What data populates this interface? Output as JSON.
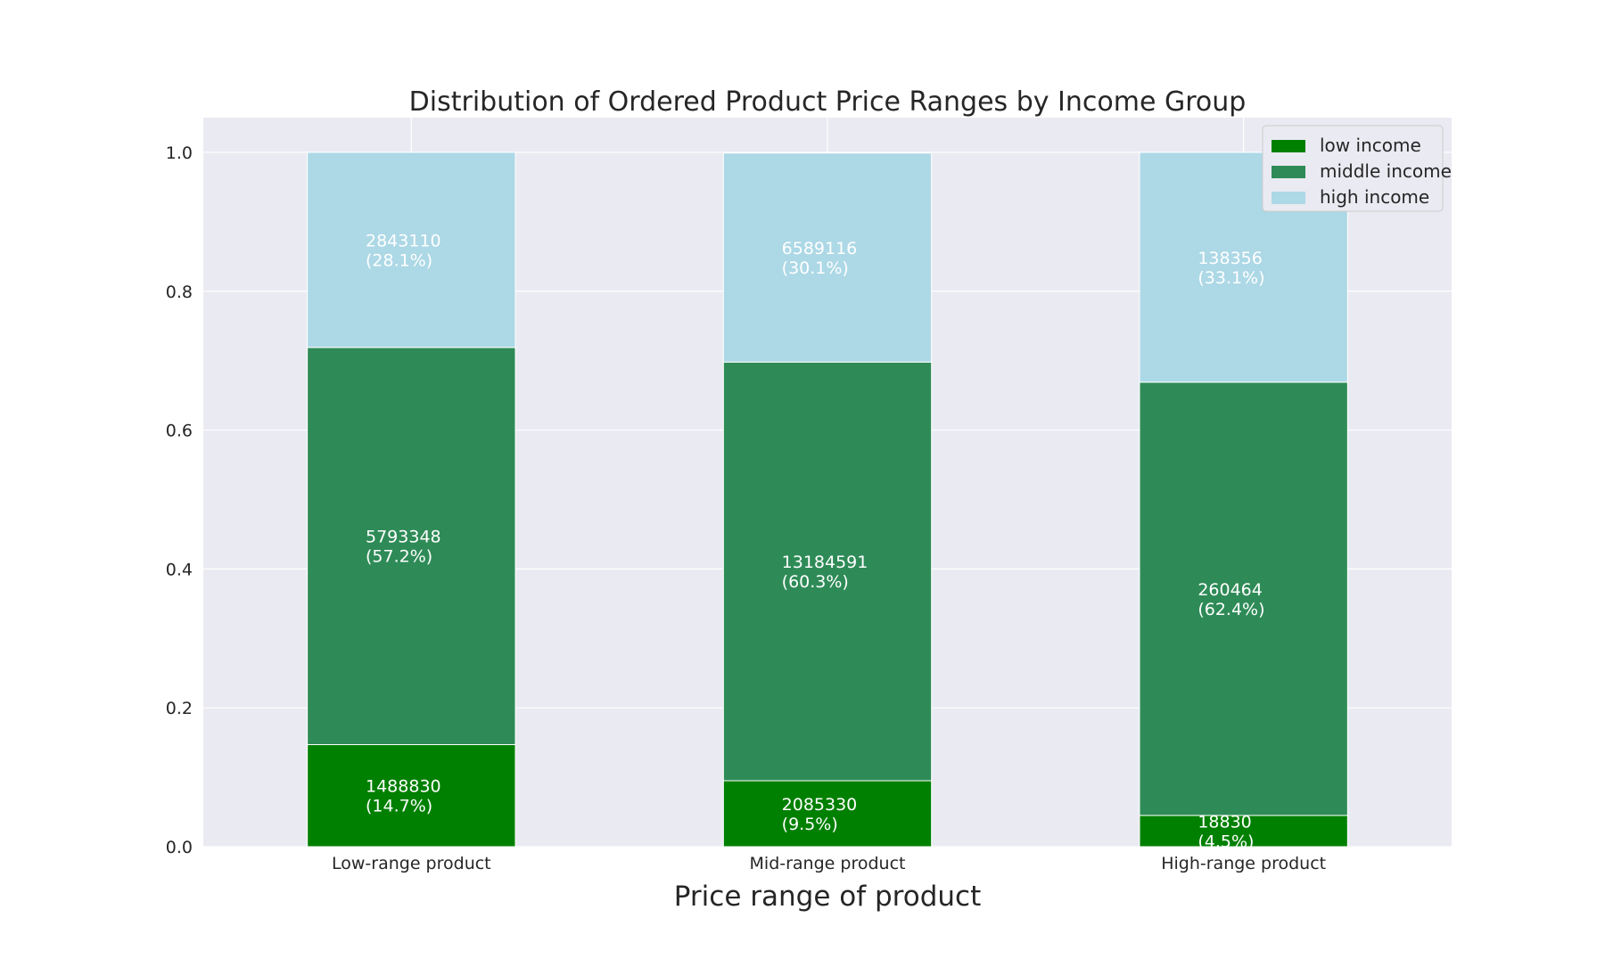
{
  "chart_data": {
    "type": "bar",
    "stacked": true,
    "normalized": true,
    "title": "Distribution of Ordered Product Price Ranges by Income Group",
    "xlabel": "Price range of product",
    "ylabel": "",
    "ylim": [
      0,
      1.05
    ],
    "yticks": [
      "0.0",
      "0.2",
      "0.4",
      "0.6",
      "0.8",
      "1.0"
    ],
    "grid": true,
    "legend_position": "top-right",
    "categories": [
      "Low-range product",
      "Mid-range product",
      "High-range product"
    ],
    "series": [
      {
        "name": "low income",
        "color": "#008000",
        "values": [
          0.147,
          0.095,
          0.045
        ],
        "labels": [
          {
            "count": "1488830",
            "pct": "(14.7%)"
          },
          {
            "count": "2085330",
            "pct": "(9.5%)"
          },
          {
            "count": "18830",
            "pct": "(4.5%)"
          }
        ]
      },
      {
        "name": "middle income",
        "color": "#2e8b57",
        "values": [
          0.572,
          0.603,
          0.624
        ],
        "labels": [
          {
            "count": "5793348",
            "pct": "(57.2%)"
          },
          {
            "count": "13184591",
            "pct": "(60.3%)"
          },
          {
            "count": "260464",
            "pct": "(62.4%)"
          }
        ]
      },
      {
        "name": "high income",
        "color": "#add8e6",
        "values": [
          0.281,
          0.301,
          0.331
        ],
        "labels": [
          {
            "count": "2843110",
            "pct": "(28.1%)"
          },
          {
            "count": "6589116",
            "pct": "(30.1%)"
          },
          {
            "count": "138356",
            "pct": "(33.1%)"
          }
        ]
      }
    ],
    "colors": {
      "plot_background": "#eaeaf2",
      "grid": "#ffffff"
    }
  }
}
